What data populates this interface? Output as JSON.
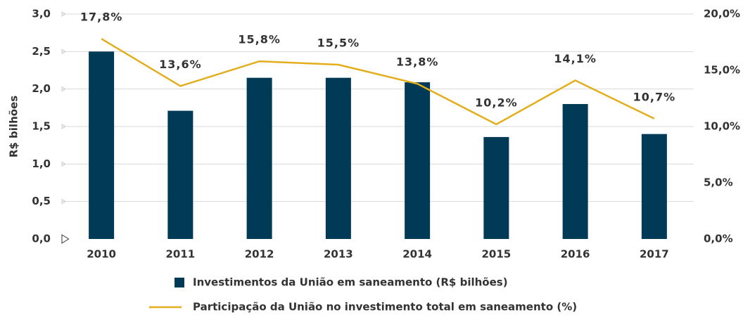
{
  "chart_data": {
    "type": "bar",
    "y_label": "R$ bilhões",
    "categories": [
      "2010",
      "2011",
      "2012",
      "2013",
      "2014",
      "2015",
      "2016",
      "2017"
    ],
    "series": [
      {
        "name": "Investimentos da União em saneamento (R$ bilhões)",
        "type": "bar",
        "color": "#003a57",
        "values": [
          2.5,
          1.71,
          2.15,
          2.15,
          2.09,
          1.36,
          1.8,
          1.4
        ]
      },
      {
        "name": "Participação da União no investimento total em saneamento (%)",
        "type": "line",
        "color": "#e3ae1c",
        "axis": "y2",
        "values": [
          17.8,
          13.6,
          15.8,
          15.5,
          13.8,
          10.2,
          14.1,
          10.7
        ],
        "value_labels": [
          "17,8%",
          "13,6%",
          "15,8%",
          "15,5%",
          "13,8%",
          "10,2%",
          "14,1%",
          "10,7%"
        ]
      }
    ],
    "ylim": [
      0,
      3
    ],
    "yticks": [
      {
        "value": 0,
        "label": "0,0"
      },
      {
        "value": 0.5,
        "label": "0,5"
      },
      {
        "value": 1,
        "label": "1,0"
      },
      {
        "value": 1.5,
        "label": "1,5"
      },
      {
        "value": 2,
        "label": "2,0"
      },
      {
        "value": 2.5,
        "label": "2,5"
      },
      {
        "value": 3,
        "label": "3,0"
      }
    ],
    "y2lim": [
      0,
      20
    ],
    "y2ticks": [
      {
        "value": 0,
        "label": "0,0%"
      },
      {
        "value": 5,
        "label": "5,0%"
      },
      {
        "value": 10,
        "label": "10,0%"
      },
      {
        "value": 15,
        "label": "15,0%"
      },
      {
        "value": 20,
        "label": "20,0%"
      }
    ],
    "grid": true
  }
}
